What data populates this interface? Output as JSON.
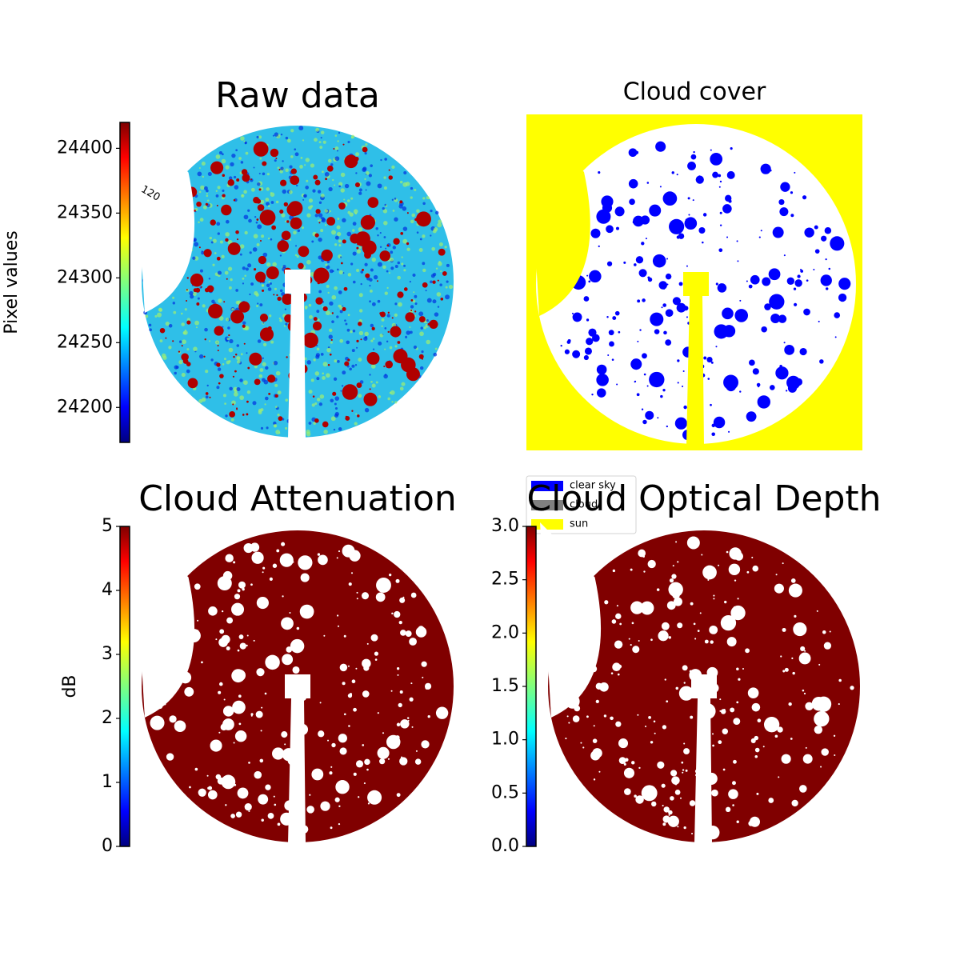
{
  "chart_data": [
    {
      "type": "image",
      "title": "Raw data",
      "colorbar_label": "Pixel values",
      "colormap": "jet",
      "clim": [
        24173,
        24420
      ],
      "cticks": [
        24200,
        24250,
        24300,
        24350,
        24400
      ],
      "annotations": [
        "120"
      ]
    },
    {
      "type": "image",
      "title": "Cloud cover",
      "legend": [
        {
          "name": "clear sky",
          "color": "#0000ff"
        },
        {
          "name": "cloud",
          "color": "#808080"
        },
        {
          "name": "sun",
          "color": "#ffff00"
        }
      ]
    },
    {
      "type": "image",
      "title": "Cloud Attenuation",
      "colorbar_label": "dB",
      "colormap": "jet",
      "clim": [
        0,
        5
      ],
      "cticks": [
        0,
        1,
        2,
        3,
        4,
        5
      ]
    },
    {
      "type": "image",
      "title": "Cloud Optical Depth",
      "colormap": "jet",
      "clim": [
        0,
        3
      ],
      "cticks": [
        {
          "value": 0,
          "label": "0.0"
        },
        {
          "value": 0.5,
          "label": "0.5"
        },
        {
          "value": 1,
          "label": "1.0"
        },
        {
          "value": 1.5,
          "label": "1.5"
        },
        {
          "value": 2,
          "label": "2.0"
        },
        {
          "value": 2.5,
          "label": "2.5"
        },
        {
          "value": 3,
          "label": "3.0"
        }
      ]
    }
  ]
}
